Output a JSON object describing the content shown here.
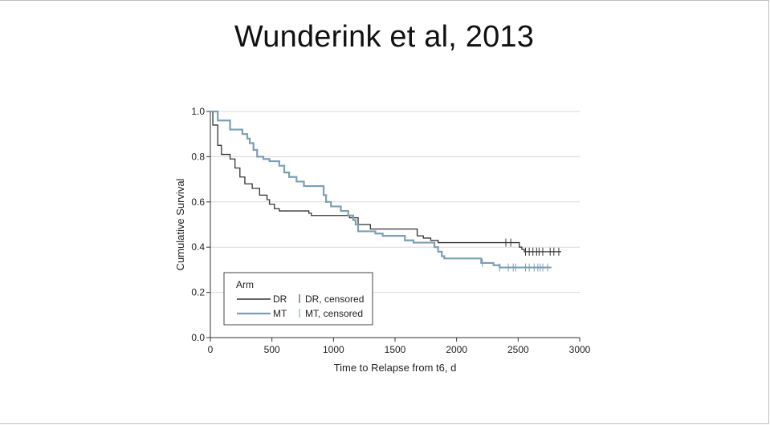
{
  "slide": {
    "title": "Wunderink et al, 2013"
  },
  "chart_data": {
    "type": "line",
    "xlabel": "Time to Relapse from t6, d",
    "ylabel": "Cumulative Survival",
    "xlim": [
      0,
      3000
    ],
    "ylim": [
      0,
      1.0
    ],
    "x_ticks": [
      0,
      500,
      1000,
      1500,
      2000,
      2500,
      3000
    ],
    "x_tick_labels": [
      "0",
      "500",
      "1000",
      "1500",
      "2000",
      "2500",
      "3000"
    ],
    "y_ticks": [
      0,
      0.2,
      0.4,
      0.6,
      0.8,
      1.0
    ],
    "y_tick_labels": [
      "0.0",
      "0.2",
      "0.4",
      "0.6",
      "0.8",
      "1.0"
    ],
    "grid": "horizontal",
    "legend": {
      "title": "Arm",
      "placement": "bottom-left",
      "entries": [
        {
          "label": "DR",
          "censored_label": "DR, censored",
          "color": "#333333"
        },
        {
          "label": "MT",
          "censored_label": "MT, censored",
          "color": "#7b9fb3"
        }
      ]
    },
    "series": [
      {
        "name": "DR",
        "color": "#333333",
        "step": [
          [
            0,
            1.0
          ],
          [
            20,
            0.94
          ],
          [
            60,
            0.85
          ],
          [
            90,
            0.81
          ],
          [
            160,
            0.79
          ],
          [
            200,
            0.75
          ],
          [
            240,
            0.71
          ],
          [
            280,
            0.68
          ],
          [
            340,
            0.66
          ],
          [
            400,
            0.63
          ],
          [
            460,
            0.61
          ],
          [
            480,
            0.59
          ],
          [
            520,
            0.57
          ],
          [
            560,
            0.56
          ],
          [
            760,
            0.56
          ],
          [
            800,
            0.55
          ],
          [
            820,
            0.54
          ],
          [
            1100,
            0.54
          ],
          [
            1130,
            0.53
          ],
          [
            1200,
            0.5
          ],
          [
            1300,
            0.48
          ],
          [
            1650,
            0.48
          ],
          [
            1680,
            0.45
          ],
          [
            1730,
            0.44
          ],
          [
            1790,
            0.43
          ],
          [
            1850,
            0.42
          ],
          [
            2500,
            0.42
          ],
          [
            2510,
            0.4
          ],
          [
            2530,
            0.39
          ],
          [
            2550,
            0.38
          ],
          [
            2850,
            0.38
          ]
        ],
        "censored": [
          2400,
          2440,
          2560,
          2590,
          2620,
          2650,
          2670,
          2700,
          2760,
          2790,
          2830
        ]
      },
      {
        "name": "MT",
        "color": "#7b9fb3",
        "step": [
          [
            0,
            1.0
          ],
          [
            60,
            0.96
          ],
          [
            160,
            0.92
          ],
          [
            260,
            0.9
          ],
          [
            300,
            0.88
          ],
          [
            320,
            0.86
          ],
          [
            350,
            0.83
          ],
          [
            380,
            0.8
          ],
          [
            430,
            0.79
          ],
          [
            480,
            0.78
          ],
          [
            560,
            0.76
          ],
          [
            600,
            0.73
          ],
          [
            640,
            0.71
          ],
          [
            700,
            0.69
          ],
          [
            760,
            0.67
          ],
          [
            880,
            0.67
          ],
          [
            920,
            0.63
          ],
          [
            940,
            0.6
          ],
          [
            980,
            0.58
          ],
          [
            1060,
            0.56
          ],
          [
            1120,
            0.54
          ],
          [
            1160,
            0.52
          ],
          [
            1180,
            0.5
          ],
          [
            1200,
            0.47
          ],
          [
            1300,
            0.47
          ],
          [
            1340,
            0.46
          ],
          [
            1400,
            0.45
          ],
          [
            1550,
            0.45
          ],
          [
            1580,
            0.43
          ],
          [
            1650,
            0.42
          ],
          [
            1780,
            0.42
          ],
          [
            1820,
            0.4
          ],
          [
            1850,
            0.38
          ],
          [
            1880,
            0.36
          ],
          [
            1900,
            0.35
          ],
          [
            2180,
            0.35
          ],
          [
            2200,
            0.33
          ],
          [
            2300,
            0.32
          ],
          [
            2350,
            0.31
          ],
          [
            2770,
            0.31
          ]
        ],
        "censored": [
          2210,
          2350,
          2420,
          2460,
          2480,
          2560,
          2590,
          2630,
          2660,
          2680,
          2700,
          2740
        ]
      }
    ]
  }
}
